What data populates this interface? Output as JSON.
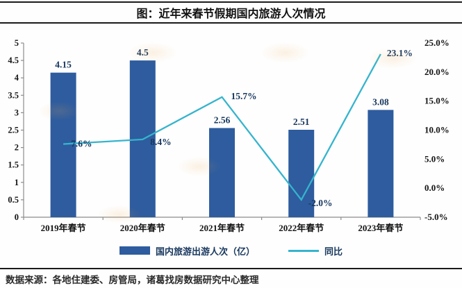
{
  "header": {
    "title": "图：近年来春节假期国内旅游人次情况"
  },
  "chart_data": {
    "type": "bar",
    "subtype": "bar-and-line-combo",
    "categories": [
      "2019年春节",
      "2020年春节",
      "2021年春节",
      "2022年春节",
      "2023年春节"
    ],
    "series": [
      {
        "name": "国内旅游出游人次（亿）",
        "type": "bar",
        "axis": "left",
        "values": [
          4.15,
          4.5,
          2.56,
          2.51,
          3.08
        ],
        "labels": [
          "4.15",
          "4.5",
          "2.56",
          "2.51",
          "3.08"
        ],
        "color": "#2e5c9e"
      },
      {
        "name": "同比",
        "type": "line",
        "axis": "right",
        "values": [
          7.6,
          8.4,
          15.7,
          -2.0,
          23.1
        ],
        "labels": [
          "7.6%",
          "8.4%",
          "15.7%",
          "-2.0%",
          "23.1%"
        ],
        "color": "#35b4cd"
      }
    ],
    "left_axis": {
      "min": 0,
      "max": 5,
      "step": 0.5,
      "ticks": [
        "0",
        "0.5",
        "1",
        "1.5",
        "2",
        "2.5",
        "3",
        "3.5",
        "4",
        "4.5",
        "5"
      ]
    },
    "right_axis": {
      "min": -5,
      "max": 25,
      "step": 5,
      "ticks": [
        "-5.0%",
        "0.0%",
        "5.0%",
        "10.0%",
        "15.0%",
        "20.0%",
        "25.0%"
      ]
    },
    "grid": false,
    "legend_position": "bottom",
    "title": "图：近年来春节假期国内旅游人次情况"
  },
  "legend": {
    "items": [
      {
        "label": "国内旅游出游人次（亿）",
        "color": "#2e5c9e",
        "marker": "rect"
      },
      {
        "label": "同比",
        "color": "#35b4cd",
        "marker": "line"
      }
    ]
  },
  "footer": {
    "source": "数据来源：各地住建委、房管局，诸葛找房数据研究中心整理"
  },
  "colors": {
    "bar": "#2e5c9e",
    "line": "#35b4cd",
    "data_label": "#17375e",
    "axis_line": "#8c8c8c",
    "axis_label": "#141414"
  }
}
